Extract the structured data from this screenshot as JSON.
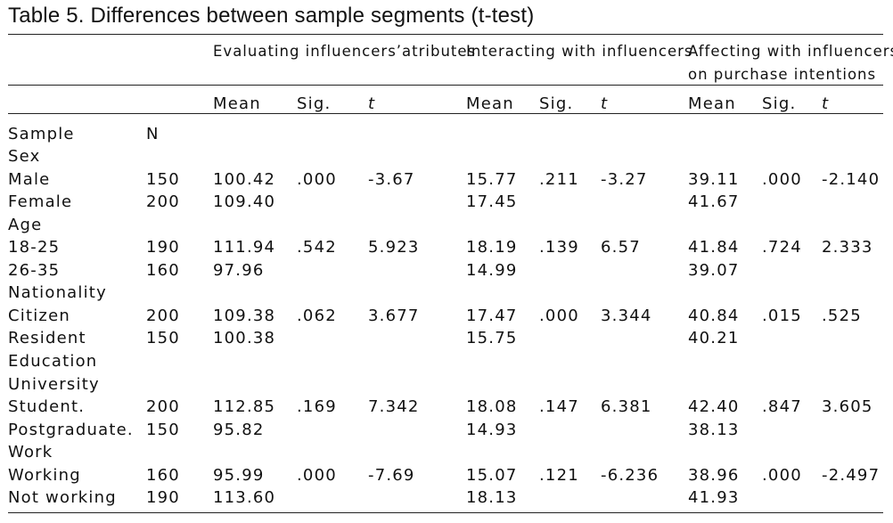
{
  "title": "Table 5.   Differences between sample segments (t-test)",
  "groups": [
    {
      "line1": "Evaluating influencers’atributes",
      "line2": ""
    },
    {
      "line1": "Interacting with influencers",
      "line2": ""
    },
    {
      "line1": "Affecting with influencers",
      "line2": "on purchase intentions"
    }
  ],
  "subheaders": {
    "mean": "Mean",
    "sig": "Sig.",
    "t": "t"
  },
  "col_labels": {
    "sample": "Sample",
    "n": "N"
  },
  "rows": [
    {
      "label": "Sex",
      "n": "",
      "v": [
        "",
        "",
        "",
        "",
        "",
        "",
        "",
        "",
        ""
      ]
    },
    {
      "label": "Male",
      "n": "150",
      "v": [
        "100.42",
        ".000",
        "-3.67",
        "15.77",
        ".211",
        "-3.27",
        "39.11",
        ".000",
        "-2.140"
      ]
    },
    {
      "label": "Female",
      "n": "200",
      "v": [
        "109.40",
        "",
        "",
        "17.45",
        "",
        "",
        "41.67",
        "",
        ""
      ]
    },
    {
      "label": "Age",
      "n": "",
      "v": [
        "",
        "",
        "",
        "",
        "",
        "",
        "",
        "",
        ""
      ]
    },
    {
      "label": "18-25",
      "n": "190",
      "v": [
        "111.94",
        ".542",
        "5.923",
        "18.19",
        ".139",
        "6.57",
        "41.84",
        ".724",
        "2.333"
      ]
    },
    {
      "label": "26-35",
      "n": "160",
      "v": [
        "97.96",
        "",
        "",
        "14.99",
        "",
        "",
        "39.07",
        "",
        ""
      ]
    },
    {
      "label": "Nationality",
      "n": "",
      "v": [
        "",
        "",
        "",
        "",
        "",
        "",
        "",
        "",
        ""
      ]
    },
    {
      "label": "Citizen",
      "n": "200",
      "v": [
        "109.38",
        ".062",
        "3.677",
        "17.47",
        ".000",
        "3.344",
        "40.84",
        ".015",
        ".525"
      ]
    },
    {
      "label": "Resident",
      "n": "150",
      "v": [
        "100.38",
        "",
        "",
        "15.75",
        "",
        "",
        "40.21",
        "",
        ""
      ]
    },
    {
      "label": "Education",
      "n": "",
      "v": [
        "",
        "",
        "",
        "",
        "",
        "",
        "",
        "",
        ""
      ]
    },
    {
      "label": "University",
      "n": "",
      "v": [
        "",
        "",
        "",
        "",
        "",
        "",
        "",
        "",
        ""
      ]
    },
    {
      "label": "Student.",
      "n": "200",
      "v": [
        "112.85",
        ".169",
        "7.342",
        "18.08",
        ".147",
        "6.381",
        "42.40",
        ".847",
        "3.605"
      ]
    },
    {
      "label": "Postgraduate.",
      "n": "150",
      "v": [
        "95.82",
        "",
        "",
        "14.93",
        "",
        "",
        "38.13",
        "",
        ""
      ]
    },
    {
      "label": "Work",
      "n": "",
      "v": [
        "",
        "",
        "",
        "",
        "",
        "",
        "",
        "",
        ""
      ]
    },
    {
      "label": "Working",
      "n": "160",
      "v": [
        "95.99",
        ".000",
        "-7.69",
        "15.07",
        ".121",
        "-6.236",
        "38.96",
        ".000",
        "-2.497"
      ]
    },
    {
      "label": "Not working",
      "n": "190",
      "v": [
        "113.60",
        "",
        "",
        "18.13",
        "",
        "",
        "41.93",
        "",
        ""
      ]
    }
  ]
}
